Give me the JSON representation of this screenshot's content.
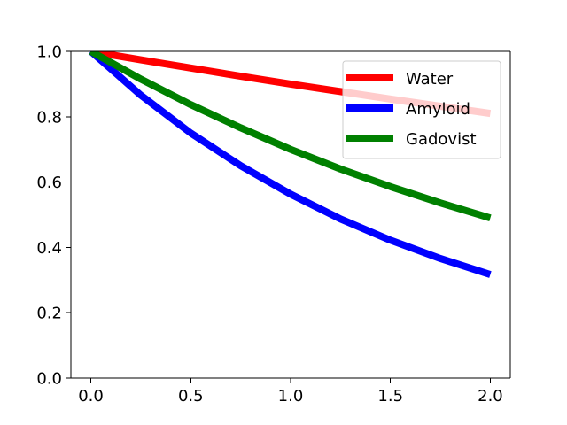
{
  "chart_data": {
    "type": "line",
    "title": "",
    "xlabel": "",
    "ylabel": "",
    "xlim": [
      -0.1,
      2.1
    ],
    "ylim": [
      0.0,
      1.0
    ],
    "x_ticks": [
      0.0,
      0.5,
      1.0,
      1.5,
      2.0
    ],
    "x_tick_labels": [
      "0.0",
      "0.5",
      "1.0",
      "1.5",
      "2.0"
    ],
    "y_ticks": [
      0.0,
      0.2,
      0.4,
      0.6,
      0.8,
      1.0
    ],
    "y_tick_labels": [
      "0.0",
      "0.2",
      "0.4",
      "0.6",
      "0.8",
      "1.0"
    ],
    "grid": false,
    "legend_position": "top-right",
    "x": [
      0.0,
      0.25,
      0.5,
      0.75,
      1.0,
      1.25,
      1.5,
      1.75,
      2.0
    ],
    "series": [
      {
        "name": "Water",
        "color": "#ff0000",
        "values": [
          1.0,
          0.974,
          0.949,
          0.924,
          0.9,
          0.877,
          0.854,
          0.832,
          0.81
        ]
      },
      {
        "name": "Amyloid",
        "color": "#0000ff",
        "values": [
          1.0,
          0.866,
          0.75,
          0.65,
          0.563,
          0.487,
          0.422,
          0.366,
          0.317
        ]
      },
      {
        "name": "Gadovist",
        "color": "#008000",
        "values": [
          1.0,
          0.915,
          0.837,
          0.766,
          0.7,
          0.64,
          0.586,
          0.536,
          0.49
        ]
      }
    ]
  }
}
